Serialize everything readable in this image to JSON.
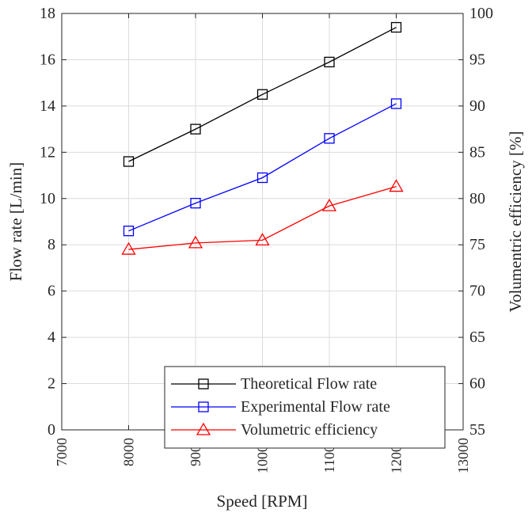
{
  "chart_data": {
    "type": "line",
    "x": [
      8000,
      9000,
      10000,
      11000,
      12000
    ],
    "xlabel": "Speed [RPM]",
    "xlim": [
      7000,
      13000
    ],
    "xticks": [
      "7000",
      "8000",
      "9000",
      "10000",
      "11000",
      "12000",
      "13000"
    ],
    "ylabel_left": "Flow rate [L/min]",
    "ylim_left": [
      0,
      18
    ],
    "yticks_left": [
      "0",
      "2",
      "4",
      "6",
      "8",
      "10",
      "12",
      "14",
      "16",
      "18"
    ],
    "ylabel_right": "Volumentric efficiency [%]",
    "ylim_right": [
      55,
      100
    ],
    "yticks_right": [
      "55",
      "60",
      "65",
      "70",
      "75",
      "80",
      "85",
      "90",
      "95",
      "100"
    ],
    "grid": true,
    "legend_position": "bottom-right",
    "series": [
      {
        "name": "Theoretical Flow rate",
        "axis": "left",
        "color": "#000000",
        "marker": "square",
        "values": [
          11.6,
          13.0,
          14.5,
          15.9,
          17.4
        ]
      },
      {
        "name": "Experimental Flow rate",
        "axis": "left",
        "color": "#0000ff",
        "marker": "square",
        "values": [
          8.6,
          9.8,
          10.9,
          12.6,
          14.1
        ]
      },
      {
        "name": "Volumetric efficiency",
        "axis": "right",
        "color": "#ff0000",
        "marker": "triangle",
        "values": [
          74.5,
          75.2,
          75.5,
          79.2,
          81.3
        ]
      }
    ]
  }
}
